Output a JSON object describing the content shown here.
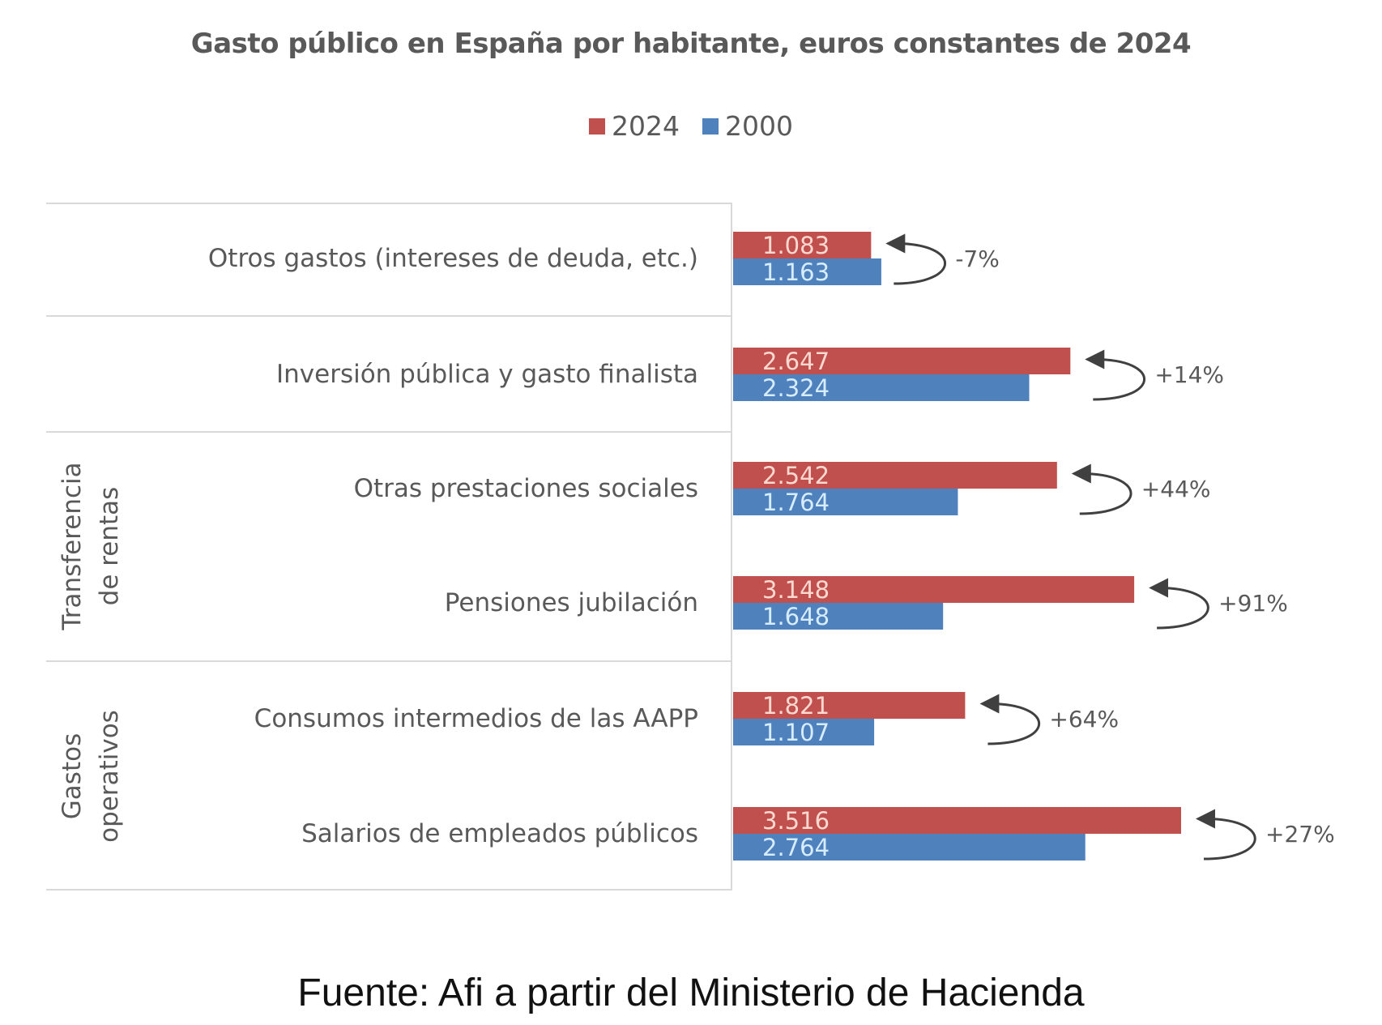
{
  "chart_data": {
    "type": "bar",
    "orientation": "horizontal",
    "title": "Gasto público en España por habitante, euros constantes de 2024",
    "xlabel": "",
    "ylabel": "",
    "xlim": [
      0,
      3600
    ],
    "grid": false,
    "legend_placement": "top-center",
    "legend": [
      {
        "name": "2024",
        "color": "#c0504d"
      },
      {
        "name": "2000",
        "color": "#4f81bd"
      }
    ],
    "categories": [
      "Otros gastos (intereses de deuda, etc.)",
      "Inversión pública y gasto finalista",
      "Otras prestaciones sociales",
      "Pensiones jubilación",
      "Consumos intermedios de las AAPP",
      "Salarios de empleados públicos"
    ],
    "series": [
      {
        "name": "2024",
        "color": "#c0504d",
        "values": [
          1083,
          2647,
          2542,
          3148,
          1821,
          3516
        ],
        "labels": [
          "1.083",
          "2.647",
          "2.542",
          "3.148",
          "1.821",
          "3.516"
        ]
      },
      {
        "name": "2000",
        "color": "#4f81bd",
        "values": [
          1163,
          2324,
          1764,
          1648,
          1107,
          2764
        ],
        "labels": [
          "1.163",
          "2.324",
          "1.764",
          "1.648",
          "1.107",
          "2.764"
        ]
      }
    ],
    "annotations": [
      "-7%",
      "+14%",
      "+44%",
      "+91%",
      "+64%",
      "+27%"
    ],
    "groups": [
      {
        "label_line1": "Transferencia",
        "label_line2": "de rentas",
        "categories": [
          "Otras prestaciones sociales",
          "Pensiones jubilación"
        ]
      },
      {
        "label_line1": "Gastos",
        "label_line2": "operativos",
        "categories": [
          "Consumos intermedios de las AAPP",
          "Salarios de empleados públicos"
        ]
      }
    ]
  },
  "source": "Fuente: Afi a partir del Ministerio de Hacienda"
}
